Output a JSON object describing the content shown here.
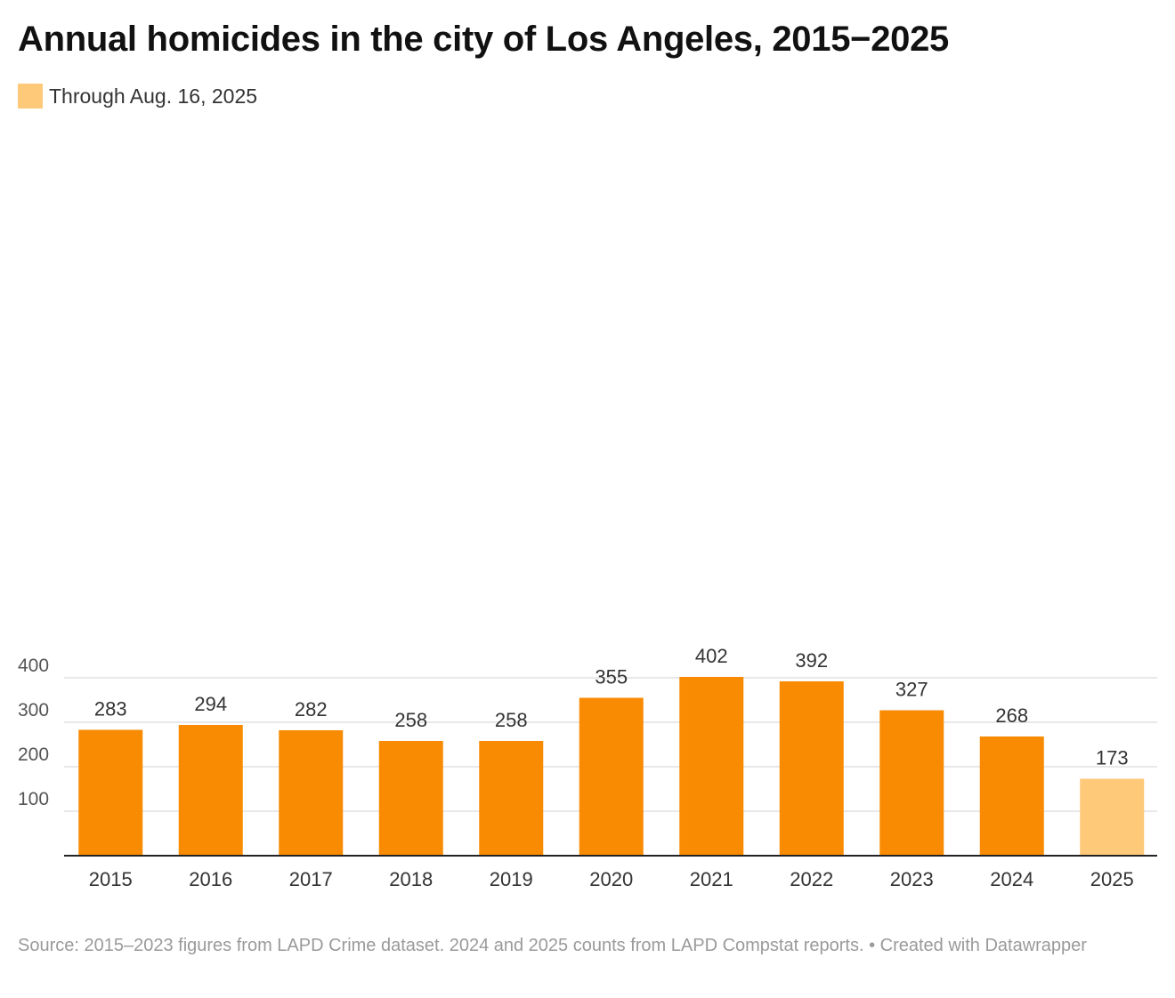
{
  "chart_data": {
    "type": "bar",
    "title": "Annual homicides in the city of Los Angeles, 2015−2025",
    "categories": [
      "2015",
      "2016",
      "2017",
      "2018",
      "2019",
      "2020",
      "2021",
      "2022",
      "2023",
      "2024",
      "2025"
    ],
    "values": [
      283,
      294,
      282,
      258,
      258,
      355,
      402,
      392,
      327,
      268,
      173
    ],
    "data_labels": [
      "283",
      "294",
      "282",
      "258",
      "258",
      "355",
      "402",
      "392",
      "327",
      "268",
      "173"
    ],
    "highlight_category": "2025",
    "legend": [
      {
        "label": "Through Aug. 16, 2025",
        "color": "#fec978"
      }
    ],
    "colors": {
      "bar": "#f88b01",
      "highlight": "#fec978",
      "gridline": "#d9d9d9",
      "axis": "#222222"
    },
    "yticks": [
      100,
      200,
      300,
      400
    ],
    "ylim": [
      0,
      400
    ],
    "grid": true,
    "legend_position": "top-left",
    "xlabel": "",
    "ylabel": ""
  },
  "footer": {
    "source": "Source: 2015–2023 figures from LAPD Crime dataset. 2024 and 2025 counts from LAPD Compstat reports. • Created with Datawrapper"
  }
}
